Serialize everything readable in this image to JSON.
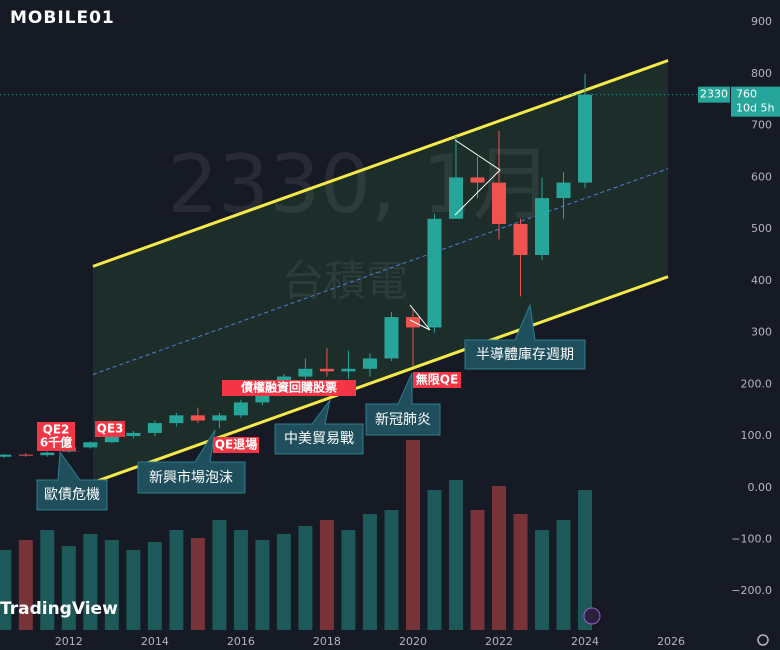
{
  "logo": "MOBILE01",
  "brand": "TradingView",
  "watermark": {
    "symbol": "2330, 1月",
    "name": "台積電"
  },
  "price_label": {
    "symbol": "2330",
    "last_price": 760,
    "countdown": "10d 5h"
  },
  "annotations": [
    {
      "text": "QE2"
    },
    {
      "text": "6千億"
    },
    {
      "text": "QE3"
    },
    {
      "text": "歐債危機"
    },
    {
      "text": "新興市場泡沫"
    },
    {
      "text": "QE退場"
    },
    {
      "text": "債權融資回購股票"
    },
    {
      "text": "中美貿易戰"
    },
    {
      "text": "新冠肺炎"
    },
    {
      "text": "無限QE"
    },
    {
      "text": "半導體庫存週期"
    }
  ],
  "chart_data": {
    "type": "candlestick",
    "x": [
      2010.5,
      2011.0,
      2011.5,
      2012.0,
      2012.5,
      2013.0,
      2013.5,
      2014.0,
      2014.5,
      2015.0,
      2015.5,
      2016.0,
      2016.5,
      2017.0,
      2017.5,
      2018.0,
      2018.5,
      2019.0,
      2019.5,
      2020.0,
      2020.5,
      2021.0,
      2021.5,
      2022.0,
      2022.5,
      2023.0,
      2023.5,
      2024.0
    ],
    "open": [
      60,
      64,
      63,
      70,
      78,
      88,
      100,
      106,
      125,
      140,
      130,
      140,
      165,
      185,
      215,
      230,
      225,
      230,
      250,
      330,
      310,
      520,
      600,
      590,
      510,
      450,
      560,
      590
    ],
    "high": [
      65,
      67,
      70,
      80,
      90,
      112,
      110,
      130,
      145,
      155,
      145,
      170,
      195,
      220,
      250,
      270,
      265,
      260,
      340,
      345,
      530,
      680,
      640,
      690,
      520,
      600,
      610,
      800
    ],
    "low": [
      58,
      60,
      60,
      68,
      76,
      86,
      95,
      100,
      118,
      125,
      115,
      135,
      160,
      180,
      210,
      215,
      210,
      215,
      245,
      235,
      300,
      520,
      560,
      480,
      370,
      440,
      520,
      580
    ],
    "close": [
      64,
      63,
      68,
      78,
      88,
      100,
      106,
      125,
      140,
      130,
      140,
      165,
      185,
      215,
      230,
      225,
      230,
      250,
      330,
      310,
      520,
      600,
      590,
      510,
      450,
      560,
      590,
      760
    ],
    "volume": [
      40,
      45,
      50,
      42,
      48,
      45,
      40,
      44,
      50,
      46,
      55,
      50,
      45,
      48,
      52,
      55,
      50,
      58,
      60,
      95,
      70,
      75,
      60,
      72,
      58,
      50,
      55,
      70
    ],
    "up_color": "#26a69a",
    "down_color": "#ef5350",
    "channel": {
      "x": [
        2012.56,
        2025.93
      ],
      "upper": [
        428,
        826
      ],
      "middle": [
        219,
        617
      ],
      "lower": [
        10,
        408
      ],
      "color": "#f5e94a"
    },
    "xlim": [
      2010.4,
      2027.37
    ],
    "ylim": [
      -275,
      943
    ],
    "xticks": [
      2012,
      2014,
      2016,
      2018,
      2020,
      2022,
      2024,
      2026
    ],
    "yticks": [
      900,
      800,
      700,
      600,
      500,
      400,
      300,
      {
        "value": 200,
        "label": "200.0"
      },
      {
        "value": 100,
        "label": "100.0"
      },
      {
        "value": 0,
        "label": "0.00"
      },
      {
        "value": -100,
        "label": "−100.0"
      },
      {
        "value": -200,
        "label": "−200.0"
      }
    ]
  }
}
